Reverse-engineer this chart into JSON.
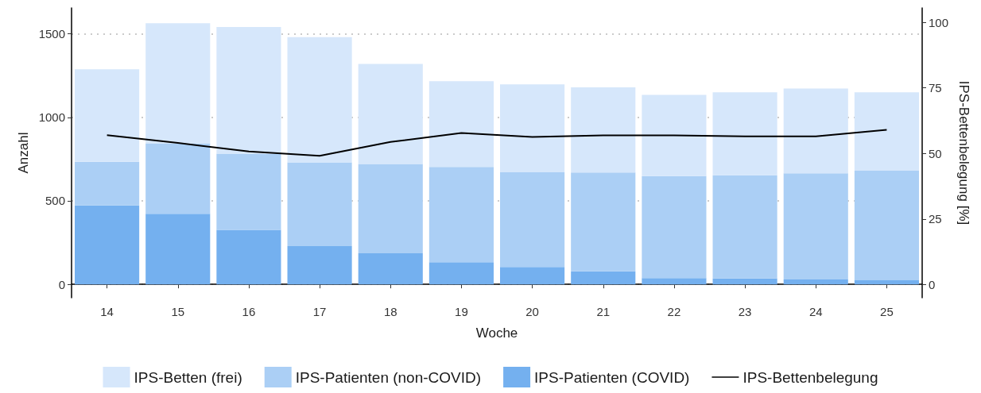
{
  "chart_data": {
    "type": "bar",
    "stacked": true,
    "xlabel": "Woche",
    "ylabel": "Anzahl",
    "y2label": "IPS-Bettenbelegung [%]",
    "categories": [
      "14",
      "15",
      "16",
      "17",
      "18",
      "19",
      "20",
      "21",
      "22",
      "23",
      "24",
      "25"
    ],
    "series": [
      {
        "name": "IPS-Patienten (COVID)",
        "color": "#74b0ef",
        "values": [
          472,
          423,
          327,
          229,
          186,
          133,
          104,
          78,
          38,
          35,
          29,
          24
        ]
      },
      {
        "name": "IPS-Patienten (non-COVID)",
        "color": "#abcff5",
        "values": [
          262,
          422,
          456,
          501,
          535,
          570,
          570,
          592,
          611,
          618,
          636,
          656
        ]
      },
      {
        "name": "IPS-Betten (frei)",
        "color": "#d6e7fb",
        "values": [
          554,
          719,
          758,
          750,
          599,
          513,
          523,
          510,
          486,
          497,
          508,
          470
        ]
      },
      {
        "name": "IPS-Bettenbelegung",
        "type": "line",
        "axis": "y2",
        "color": "#000000",
        "values": [
          57.0,
          54.0,
          50.8,
          49.1,
          54.4,
          57.8,
          56.3,
          56.9,
          56.9,
          56.5,
          56.5,
          59.0
        ]
      }
    ],
    "ylim": [
      -80,
      1655
    ],
    "yticks": [
      0,
      500,
      1000,
      1500
    ],
    "y2lim": [
      -5,
      105.5
    ],
    "y2ticks": [
      0,
      25,
      50,
      75,
      100
    ],
    "grid": "y",
    "legend": "bottom",
    "marker": "none"
  }
}
